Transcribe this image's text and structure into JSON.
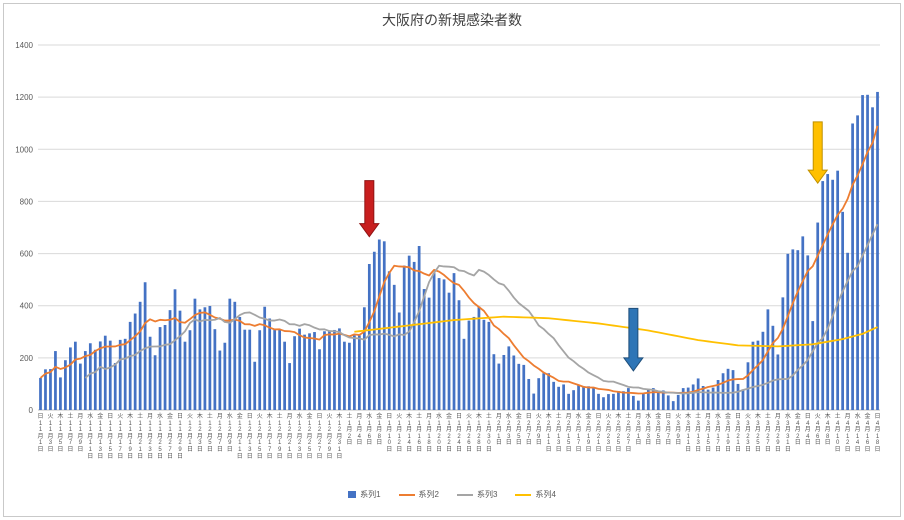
{
  "chart_data": {
    "type": "bar",
    "title": "大阪府の新規感染者数",
    "ylim": [
      0,
      1400
    ],
    "y_ticks": [
      0,
      200,
      400,
      600,
      800,
      1000,
      1200,
      1400
    ],
    "grid": true,
    "legend_position": "bottom",
    "x_tick_step": 2,
    "x_start_date": "11月1日",
    "x_end_date": "4月18日",
    "x_tick_labels": [
      "日11月1日",
      "火11月3日",
      "木11月5日",
      "土11月7日",
      "月11月9日",
      "水11月11日",
      "金11月13日",
      "日11月15日",
      "火11月17日",
      "木11月19日",
      "土11月21日",
      "月11月23日",
      "水11月25日",
      "金11月27日",
      "日11月29日",
      "火12月1日",
      "木12月3日",
      "土12月5日",
      "月12月7日",
      "水12月9日",
      "金12月11日",
      "日12月13日",
      "火12月15日",
      "木12月17日",
      "土12月19日",
      "月12月21日",
      "水12月23日",
      "金12月25日",
      "日12月27日",
      "火12月29日",
      "木12月31日",
      "土1月2日",
      "月1月4日",
      "水1月6日",
      "金1月8日",
      "日1月10日",
      "火1月12日",
      "木1月14日",
      "土1月16日",
      "月1月18日",
      "水1月20日",
      "金1月22日",
      "日1月24日",
      "火1月26日",
      "木1月28日",
      "土1月30日",
      "月2月1日",
      "水2月3日",
      "金2月5日",
      "日2月7日",
      "火2月9日",
      "木2月11日",
      "土2月13日",
      "月2月15日",
      "水2月17日",
      "金2月19日",
      "日2月21日",
      "火2月23日",
      "木2月25日",
      "土2月27日",
      "月3月1日",
      "水3月3日",
      "金3月5日",
      "日3月7日",
      "火3月9日",
      "木3月11日",
      "土3月13日",
      "月3月15日",
      "水3月17日",
      "金3月19日",
      "日3月21日",
      "火3月23日",
      "木3月25日",
      "土3月27日",
      "月3月29日",
      "水3月31日",
      "金4月2日",
      "日4月4日",
      "火4月6日",
      "木4月8日",
      "土4月10日",
      "月4月12日",
      "水4月14日",
      "金4月16日",
      "日4月18日"
    ],
    "series": [
      {
        "name": "系列1",
        "type": "bar",
        "color": "#4472c4",
        "values": [
          123,
          156,
          157,
          226,
          125,
          191,
          240,
          262,
          178,
          226,
          256,
          231,
          263,
          285,
          266,
          180,
          269,
          273,
          338,
          370,
          415,
          490,
          281,
          210,
          318,
          326,
          383,
          463,
          381,
          262,
          306,
          427,
          386,
          394,
          399,
          310,
          228,
          258,
          427,
          415,
          357,
          308,
          308,
          185,
          306,
          396,
          351,
          309,
          311,
          262,
          180,
          283,
          312,
          289,
          294,
          299,
          233,
          302,
          302,
          307,
          313,
          262,
          258,
          286,
          286,
          394,
          560,
          607,
          654,
          647,
          532,
          480,
          374,
          554,
          592,
          568,
          629,
          464,
          431,
          525,
          506,
          501,
          450,
          525,
          421,
          273,
          343,
          357,
          397,
          346,
          338,
          214,
          178,
          211,
          244,
          209,
          177,
          173,
          119,
          63,
          122,
          141,
          141,
          108,
          89,
          98,
          62,
          76,
          97,
          91,
          91,
          88,
          62,
          49,
          61,
          62,
          73,
          72,
          84,
          54,
          36,
          65,
          81,
          84,
          72,
          75,
          56,
          34,
          58,
          84,
          86,
          98,
          121,
          92,
          78,
          86,
          115,
          141,
          158,
          153,
          100,
          79,
          183,
          262,
          266,
          300,
          386,
          323,
          213,
          432,
          599,
          616,
          613,
          666,
          593,
          341,
          719,
          878,
          905,
          883,
          918,
          760,
          603,
          1099,
          1130,
          1208,
          1209,
          1161,
          1220
        ]
      },
      {
        "name": "系列2",
        "type": "line",
        "color": "#ed7d31",
        "derived": "moving_average_7_of_series1"
      },
      {
        "name": "系列3",
        "type": "line",
        "color": "#a5a5a5",
        "derived": "moving_average_7_of_series1_shifted_9_days"
      },
      {
        "name": "系列4",
        "type": "line",
        "color": "#ffc000",
        "keypoints_x": [
          63,
          72,
          83,
          93,
          102,
          112,
          122,
          132,
          140,
          148,
          155,
          161,
          165,
          168
        ],
        "keypoints_v": [
          300,
          320,
          345,
          358,
          352,
          332,
          305,
          268,
          248,
          244,
          252,
          272,
          292,
          318
        ]
      }
    ],
    "annotations": [
      {
        "name": "red-arrow",
        "shape": "down-arrow",
        "color": "#c81e1e",
        "border": "#8f1414",
        "index": 66,
        "value_top": 880,
        "value_tip": 665
      },
      {
        "name": "blue-arrow",
        "shape": "down-arrow",
        "color": "#2e75b6",
        "border": "#1f4e79",
        "index": 119,
        "value_top": 390,
        "value_tip": 150
      },
      {
        "name": "yellow-arrow",
        "shape": "down-arrow",
        "color": "#ffc000",
        "border": "#bf9000",
        "index": 156,
        "value_top": 1105,
        "value_tip": 870
      }
    ]
  },
  "legend": {
    "items": [
      "系列1",
      "系列2",
      "系列3",
      "系列4"
    ]
  }
}
